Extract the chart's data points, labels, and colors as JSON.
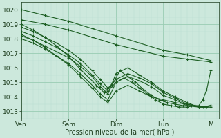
{
  "xlabel": "Pression niveau de la mer( hPa )",
  "bg_color": "#cce8dc",
  "plot_bg_color": "#cce8dc",
  "grid_major_color": "#99ccb3",
  "grid_minor_color": "#b8ddd0",
  "line_color": "#1a5c20",
  "ylim": [
    1012.5,
    1020.5
  ],
  "yticks": [
    1013,
    1014,
    1015,
    1016,
    1017,
    1018,
    1019,
    1020
  ],
  "x_day_labels": [
    "Ven",
    "Sam",
    "Dim",
    "Lun",
    "M"
  ],
  "x_day_positions": [
    0,
    24,
    48,
    72,
    96
  ],
  "xlim": [
    0,
    100
  ],
  "series": [
    {
      "x": [
        0,
        12,
        24,
        36,
        48,
        60,
        72,
        84,
        96
      ],
      "y": [
        1020.0,
        1019.6,
        1019.2,
        1018.7,
        1018.2,
        1017.7,
        1017.2,
        1016.9,
        1016.5
      ]
    },
    {
      "x": [
        0,
        12,
        24,
        36,
        48,
        60,
        72,
        84,
        96
      ],
      "y": [
        1019.3,
        1019.0,
        1018.6,
        1018.1,
        1017.6,
        1017.2,
        1016.8,
        1016.6,
        1016.4
      ]
    },
    {
      "x": [
        0,
        6,
        12,
        18,
        24,
        30,
        36,
        40,
        44,
        48,
        54,
        60,
        66,
        72,
        78,
        84,
        90,
        96
      ],
      "y": [
        1018.8,
        1018.5,
        1018.1,
        1017.7,
        1017.2,
        1016.6,
        1015.8,
        1015.2,
        1014.6,
        1015.2,
        1015.6,
        1015.3,
        1014.9,
        1014.3,
        1013.9,
        1013.5,
        1013.3,
        1013.4
      ]
    },
    {
      "x": [
        0,
        6,
        12,
        18,
        24,
        30,
        36,
        40,
        44,
        48,
        54,
        60,
        66,
        72,
        78,
        84,
        90,
        96
      ],
      "y": [
        1018.5,
        1018.2,
        1017.8,
        1017.4,
        1016.9,
        1016.3,
        1015.5,
        1014.9,
        1014.4,
        1015.0,
        1015.4,
        1015.1,
        1014.7,
        1014.1,
        1013.8,
        1013.4,
        1013.3,
        1013.4
      ]
    },
    {
      "x": [
        0,
        6,
        12,
        18,
        24,
        30,
        36,
        40,
        44,
        48,
        54,
        60,
        66,
        72,
        78,
        84,
        90,
        96
      ],
      "y": [
        1018.2,
        1017.9,
        1017.5,
        1017.1,
        1016.7,
        1016.1,
        1015.4,
        1014.7,
        1014.2,
        1015.6,
        1016.0,
        1015.5,
        1015.0,
        1014.4,
        1014.0,
        1013.6,
        1013.3,
        1013.3
      ]
    },
    {
      "x": [
        0,
        6,
        12,
        18,
        24,
        30,
        36,
        38,
        42,
        46,
        50,
        54,
        58,
        62,
        66,
        70,
        74,
        78,
        82,
        86,
        90,
        94,
        96
      ],
      "y": [
        1019.0,
        1018.6,
        1018.1,
        1017.5,
        1016.8,
        1015.9,
        1015.1,
        1014.8,
        1014.3,
        1014.8,
        1015.8,
        1015.4,
        1015.0,
        1014.5,
        1014.1,
        1013.8,
        1013.6,
        1013.5,
        1013.4,
        1013.4,
        1013.3,
        1013.3,
        1013.4
      ]
    },
    {
      "x": [
        0,
        6,
        12,
        18,
        24,
        30,
        36,
        40,
        44,
        48,
        52,
        56,
        60,
        64,
        68,
        72,
        76,
        80,
        84,
        88,
        92,
        96
      ],
      "y": [
        1018.0,
        1017.7,
        1017.3,
        1016.8,
        1016.3,
        1015.6,
        1014.8,
        1014.2,
        1013.8,
        1015.0,
        1015.3,
        1015.0,
        1014.6,
        1014.2,
        1013.8,
        1013.5,
        1013.4,
        1013.3,
        1013.3,
        1013.4,
        1013.3,
        1013.4
      ]
    },
    {
      "x": [
        0,
        6,
        12,
        18,
        24,
        30,
        36,
        40,
        44,
        48,
        54,
        60,
        66,
        72,
        78,
        84,
        88,
        90,
        92,
        94,
        96
      ],
      "y": [
        1018.3,
        1017.9,
        1017.4,
        1016.8,
        1016.2,
        1015.4,
        1014.6,
        1014.0,
        1013.6,
        1014.4,
        1014.8,
        1014.4,
        1014.0,
        1013.8,
        1013.6,
        1013.5,
        1013.4,
        1013.4,
        1013.8,
        1014.5,
        1015.8
      ]
    }
  ]
}
